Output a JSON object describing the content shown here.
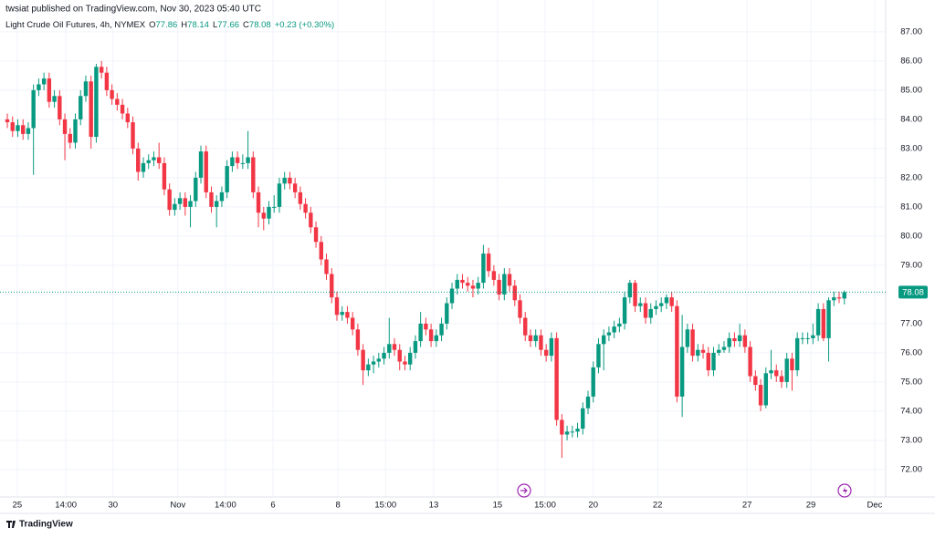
{
  "header": {
    "publisher": "twsiat published on TradingView.com, Nov 30, 2023 05:40 UTC"
  },
  "footer": {
    "brand": "TradingView"
  },
  "chart_data": {
    "type": "candlestick",
    "title": "Light Crude Oil Futures, 4h, NYMEX",
    "legend_letters": [
      "O",
      "H",
      "L",
      "C"
    ],
    "change": "+0.23 (+0.30%)",
    "up_color": "#089981",
    "down_color": "#f23645",
    "grid": true,
    "ylim": [
      71.06,
      88.09
    ],
    "yticks": [
      {
        "value": 72,
        "label": "72.00"
      },
      {
        "value": 73,
        "label": "73.00"
      },
      {
        "value": 74,
        "label": "74.00"
      },
      {
        "value": 75,
        "label": "75.00"
      },
      {
        "value": 76,
        "label": "76.00"
      },
      {
        "value": 77,
        "label": "77.00"
      },
      {
        "value": 78,
        "label": "78.00"
      },
      {
        "value": 79,
        "label": "79.00"
      },
      {
        "value": 80,
        "label": "80.00"
      },
      {
        "value": 81,
        "label": "81.00"
      },
      {
        "value": 82,
        "label": "82.00"
      },
      {
        "value": 83,
        "label": "83.00"
      },
      {
        "value": 84,
        "label": "84.00"
      },
      {
        "value": 85,
        "label": "85.00"
      },
      {
        "value": 86,
        "label": "86.00"
      },
      {
        "value": 87,
        "label": "87.00"
      }
    ],
    "xlim": [
      -1.4,
      167.9
    ],
    "xticks": [
      {
        "value": 1.9,
        "label": "25"
      },
      {
        "value": 11.2,
        "label": "14:00"
      },
      {
        "value": 20.2,
        "label": "30"
      },
      {
        "value": 32.6,
        "label": "Nov"
      },
      {
        "value": 41.7,
        "label": "14:00"
      },
      {
        "value": 50.8,
        "label": "6"
      },
      {
        "value": 63.2,
        "label": "8"
      },
      {
        "value": 72.3,
        "label": "15:00"
      },
      {
        "value": 81.5,
        "label": "13"
      },
      {
        "value": 93.7,
        "label": "15"
      },
      {
        "value": 102.8,
        "label": "15:00"
      },
      {
        "value": 112.0,
        "label": "20"
      },
      {
        "value": 124.3,
        "label": "22"
      },
      {
        "value": 141.4,
        "label": "27"
      },
      {
        "value": 153.6,
        "label": "29"
      },
      {
        "value": 165.8,
        "label": "Dec"
      }
    ],
    "ohlc": [
      [
        84.0,
        84.2,
        83.7,
        83.9
      ],
      [
        83.9,
        84.1,
        83.4,
        83.6
      ],
      [
        83.6,
        84.0,
        83.4,
        83.8
      ],
      [
        83.8,
        84.0,
        83.3,
        83.5
      ],
      [
        83.5,
        83.9,
        83.3,
        83.7
      ],
      [
        83.7,
        85.2,
        82.1,
        85.0
      ],
      [
        85.0,
        85.4,
        84.8,
        85.2
      ],
      [
        85.2,
        85.6,
        85.0,
        85.4
      ],
      [
        85.4,
        85.6,
        84.4,
        84.6
      ],
      [
        84.6,
        85.0,
        84.4,
        84.8
      ],
      [
        84.8,
        85.0,
        83.8,
        84.0
      ],
      [
        84.0,
        84.2,
        82.6,
        83.5
      ],
      [
        83.5,
        83.7,
        83.0,
        83.2
      ],
      [
        83.2,
        84.2,
        83.0,
        84.0
      ],
      [
        84.0,
        85.0,
        83.8,
        84.8
      ],
      [
        84.8,
        85.5,
        84.6,
        85.3
      ],
      [
        85.3,
        85.5,
        83.0,
        83.4
      ],
      [
        83.4,
        85.9,
        83.2,
        85.8
      ],
      [
        85.8,
        86.0,
        85.4,
        85.6
      ],
      [
        85.6,
        85.8,
        84.8,
        85.0
      ],
      [
        85.0,
        85.2,
        84.5,
        84.7
      ],
      [
        84.7,
        84.9,
        84.3,
        84.5
      ],
      [
        84.5,
        84.7,
        84.0,
        84.2
      ],
      [
        84.2,
        84.4,
        83.7,
        83.9
      ],
      [
        83.9,
        84.1,
        82.8,
        83.0
      ],
      [
        83.0,
        83.2,
        81.9,
        82.2
      ],
      [
        82.2,
        82.7,
        82.0,
        82.5
      ],
      [
        82.5,
        82.8,
        82.3,
        82.6
      ],
      [
        82.6,
        82.9,
        82.4,
        82.7
      ],
      [
        82.7,
        83.2,
        82.3,
        82.5
      ],
      [
        82.5,
        82.7,
        81.4,
        81.6
      ],
      [
        81.6,
        81.8,
        80.7,
        80.9
      ],
      [
        80.9,
        81.3,
        80.7,
        81.1
      ],
      [
        81.1,
        81.5,
        80.9,
        81.3
      ],
      [
        81.3,
        81.5,
        80.7,
        81.0
      ],
      [
        81.0,
        81.4,
        80.3,
        81.2
      ],
      [
        81.2,
        82.2,
        81.0,
        82.0
      ],
      [
        82.0,
        83.1,
        81.8,
        82.9
      ],
      [
        82.9,
        83.1,
        81.3,
        81.5
      ],
      [
        81.5,
        81.7,
        80.8,
        81.0
      ],
      [
        81.0,
        81.4,
        80.3,
        81.2
      ],
      [
        81.2,
        81.7,
        81.0,
        81.5
      ],
      [
        81.5,
        82.6,
        81.3,
        82.4
      ],
      [
        82.4,
        82.9,
        82.2,
        82.7
      ],
      [
        82.7,
        82.9,
        82.3,
        82.5
      ],
      [
        82.5,
        82.8,
        82.3,
        82.5
      ],
      [
        82.5,
        83.6,
        82.3,
        82.7
      ],
      [
        82.7,
        82.9,
        81.3,
        81.5
      ],
      [
        81.5,
        81.7,
        80.3,
        80.8
      ],
      [
        80.8,
        81.0,
        80.2,
        80.6
      ],
      [
        80.6,
        81.2,
        80.4,
        81.0
      ],
      [
        81.0,
        81.4,
        80.8,
        81.0
      ],
      [
        81.0,
        82.0,
        80.8,
        81.8
      ],
      [
        81.8,
        82.2,
        81.6,
        82.0
      ],
      [
        82.0,
        82.2,
        81.6,
        81.8
      ],
      [
        81.8,
        82.0,
        81.3,
        81.5
      ],
      [
        81.5,
        81.7,
        80.9,
        81.1
      ],
      [
        81.1,
        81.3,
        80.6,
        80.8
      ],
      [
        80.8,
        81.0,
        80.1,
        80.3
      ],
      [
        80.3,
        80.5,
        79.6,
        79.8
      ],
      [
        79.8,
        80.0,
        79.0,
        79.2
      ],
      [
        79.2,
        79.4,
        78.5,
        78.7
      ],
      [
        78.7,
        78.9,
        77.7,
        77.9
      ],
      [
        77.9,
        78.1,
        77.1,
        77.3
      ],
      [
        77.3,
        77.6,
        77.1,
        77.4
      ],
      [
        77.4,
        77.6,
        77.0,
        77.2
      ],
      [
        77.2,
        77.4,
        76.6,
        76.8
      ],
      [
        76.8,
        77.0,
        75.9,
        76.1
      ],
      [
        76.1,
        76.3,
        74.9,
        75.4
      ],
      [
        75.4,
        75.8,
        75.2,
        75.6
      ],
      [
        75.6,
        75.9,
        75.3,
        75.7
      ],
      [
        75.7,
        76.0,
        75.5,
        75.8
      ],
      [
        75.8,
        76.2,
        75.6,
        76.0
      ],
      [
        76.0,
        77.2,
        75.8,
        76.3
      ],
      [
        76.3,
        76.5,
        75.9,
        76.1
      ],
      [
        76.1,
        76.3,
        75.4,
        75.7
      ],
      [
        75.7,
        75.9,
        75.4,
        75.6
      ],
      [
        75.6,
        76.2,
        75.4,
        76.0
      ],
      [
        76.0,
        76.6,
        75.8,
        76.4
      ],
      [
        76.4,
        77.4,
        76.2,
        77.0
      ],
      [
        77.0,
        77.2,
        76.6,
        76.8
      ],
      [
        76.8,
        77.0,
        76.2,
        76.4
      ],
      [
        76.4,
        76.8,
        76.2,
        76.6
      ],
      [
        76.6,
        77.2,
        76.4,
        77.0
      ],
      [
        77.0,
        77.9,
        76.8,
        77.7
      ],
      [
        77.7,
        78.4,
        77.5,
        78.2
      ],
      [
        78.2,
        78.7,
        78.0,
        78.5
      ],
      [
        78.5,
        78.7,
        78.2,
        78.4
      ],
      [
        78.4,
        78.6,
        78.1,
        78.3
      ],
      [
        78.3,
        78.5,
        77.9,
        78.2
      ],
      [
        78.2,
        78.6,
        78.0,
        78.4
      ],
      [
        78.4,
        79.7,
        78.2,
        79.4
      ],
      [
        79.4,
        79.6,
        78.6,
        78.8
      ],
      [
        78.8,
        79.0,
        78.3,
        78.5
      ],
      [
        78.5,
        78.7,
        77.8,
        78.0
      ],
      [
        78.0,
        78.9,
        77.8,
        78.7
      ],
      [
        78.7,
        78.9,
        78.1,
        78.3
      ],
      [
        78.3,
        78.5,
        77.6,
        77.8
      ],
      [
        77.8,
        78.0,
        77.0,
        77.2
      ],
      [
        77.2,
        77.4,
        76.4,
        76.6
      ],
      [
        76.6,
        76.8,
        76.2,
        76.4
      ],
      [
        76.4,
        76.8,
        76.2,
        76.6
      ],
      [
        76.6,
        76.8,
        75.9,
        76.1
      ],
      [
        76.1,
        76.3,
        75.7,
        75.9
      ],
      [
        75.9,
        76.7,
        75.7,
        76.5
      ],
      [
        76.5,
        76.7,
        73.5,
        73.7
      ],
      [
        73.7,
        73.9,
        72.4,
        73.2
      ],
      [
        73.2,
        73.5,
        73.0,
        73.3
      ],
      [
        73.3,
        73.5,
        73.1,
        73.3
      ],
      [
        73.3,
        73.6,
        73.1,
        73.4
      ],
      [
        73.4,
        74.3,
        73.2,
        74.1
      ],
      [
        74.1,
        74.7,
        73.9,
        74.5
      ],
      [
        74.5,
        75.7,
        74.3,
        75.5
      ],
      [
        75.5,
        76.5,
        75.3,
        76.3
      ],
      [
        76.3,
        76.8,
        75.4,
        76.6
      ],
      [
        76.6,
        76.9,
        76.4,
        76.7
      ],
      [
        76.7,
        77.1,
        76.5,
        76.9
      ],
      [
        76.9,
        77.2,
        76.7,
        77.0
      ],
      [
        77.0,
        78.1,
        76.8,
        77.9
      ],
      [
        77.9,
        78.5,
        77.7,
        78.4
      ],
      [
        78.4,
        78.5,
        77.4,
        77.6
      ],
      [
        77.6,
        77.9,
        77.4,
        77.7
      ],
      [
        77.7,
        77.9,
        77.0,
        77.2
      ],
      [
        77.2,
        77.7,
        77.0,
        77.5
      ],
      [
        77.5,
        77.8,
        77.3,
        77.6
      ],
      [
        77.6,
        77.9,
        77.4,
        77.7
      ],
      [
        77.7,
        78.0,
        77.5,
        77.9
      ],
      [
        77.9,
        78.1,
        77.4,
        77.6
      ],
      [
        77.6,
        77.8,
        74.3,
        74.5
      ],
      [
        74.5,
        77.3,
        73.8,
        76.2
      ],
      [
        76.2,
        77.0,
        76.0,
        76.8
      ],
      [
        76.8,
        77.0,
        75.7,
        75.9
      ],
      [
        75.9,
        76.3,
        75.7,
        76.1
      ],
      [
        76.1,
        76.3,
        75.8,
        76.0
      ],
      [
        76.0,
        76.2,
        75.2,
        75.4
      ],
      [
        75.4,
        76.2,
        75.2,
        76.0
      ],
      [
        76.0,
        76.3,
        75.9,
        76.1
      ],
      [
        76.1,
        76.4,
        76.0,
        76.2
      ],
      [
        76.2,
        76.7,
        76.0,
        76.5
      ],
      [
        76.5,
        76.7,
        76.2,
        76.4
      ],
      [
        76.4,
        77.0,
        76.2,
        76.6
      ],
      [
        76.6,
        76.8,
        76.0,
        76.2
      ],
      [
        76.2,
        76.4,
        75.0,
        75.2
      ],
      [
        75.2,
        75.4,
        74.7,
        74.9
      ],
      [
        74.9,
        75.1,
        74.0,
        74.2
      ],
      [
        74.2,
        75.5,
        74.1,
        75.3
      ],
      [
        75.3,
        76.1,
        75.1,
        75.4
      ],
      [
        75.4,
        75.6,
        75.0,
        75.2
      ],
      [
        75.2,
        75.4,
        74.8,
        75.0
      ],
      [
        75.0,
        76.0,
        74.8,
        75.8
      ],
      [
        75.8,
        76.0,
        74.7,
        75.4
      ],
      [
        75.4,
        76.7,
        75.2,
        76.5
      ],
      [
        76.5,
        76.7,
        76.3,
        76.5
      ],
      [
        76.5,
        76.7,
        76.3,
        76.5
      ],
      [
        76.5,
        77.0,
        76.3,
        76.6
      ],
      [
        76.6,
        77.7,
        76.4,
        77.5
      ],
      [
        77.5,
        77.7,
        76.4,
        76.5
      ],
      [
        76.5,
        77.9,
        75.7,
        77.8
      ],
      [
        77.8,
        78.1,
        77.6,
        77.9
      ],
      [
        77.9,
        78.1,
        77.7,
        77.86
      ],
      [
        77.86,
        78.14,
        77.66,
        78.08
      ]
    ]
  }
}
